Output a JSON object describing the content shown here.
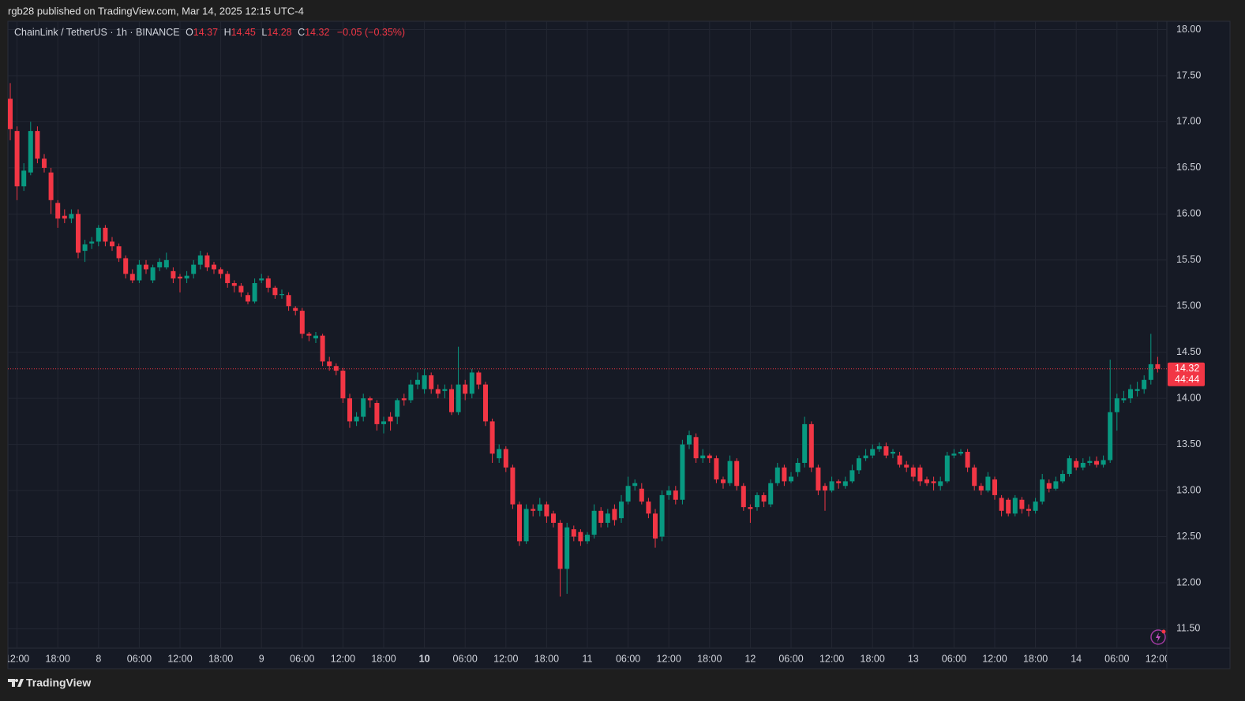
{
  "header": "rgb28 published on TradingView.com, Mar 14, 2025 12:15 UTC-4",
  "footer": "TradingView",
  "chart_data": {
    "type": "candlestick",
    "symbol": "ChainLink / TetherUS · 1h · BINANCE",
    "legend": {
      "o": "O",
      "h": "H",
      "l": "L",
      "c": "C",
      "change": "−0.05 (−0.35%)"
    },
    "countdown": "44:44",
    "up_color": "#089981",
    "down_color": "#f23645",
    "grid": true,
    "ylim": [
      11.29,
      18.09
    ],
    "yticks": [
      {
        "value": 11.5,
        "label": "11.50"
      },
      {
        "value": 12,
        "label": "12.00"
      },
      {
        "value": 12.5,
        "label": "12.50"
      },
      {
        "value": 13,
        "label": "13.00"
      },
      {
        "value": 13.5,
        "label": "13.50"
      },
      {
        "value": 14,
        "label": "14.00"
      },
      {
        "value": 14.5,
        "label": "14.50"
      },
      {
        "value": 15,
        "label": "15.00"
      },
      {
        "value": 15.5,
        "label": "15.50"
      },
      {
        "value": 16,
        "label": "16.00"
      },
      {
        "value": 16.5,
        "label": "16.50"
      },
      {
        "value": 17,
        "label": "17.00"
      },
      {
        "value": 17.5,
        "label": "17.50"
      },
      {
        "value": 18,
        "label": "18.00"
      }
    ],
    "xticks": [
      {
        "value": 1,
        "label": "12:00"
      },
      {
        "value": 7,
        "label": "18:00"
      },
      {
        "value": 13,
        "label": "8"
      },
      {
        "value": 19,
        "label": "06:00"
      },
      {
        "value": 25,
        "label": "12:00"
      },
      {
        "value": 31,
        "label": "18:00"
      },
      {
        "value": 37,
        "label": "9"
      },
      {
        "value": 43,
        "label": "06:00"
      },
      {
        "value": 49,
        "label": "12:00"
      },
      {
        "value": 55,
        "label": "18:00"
      },
      {
        "value": 61,
        "label": "10",
        "bold": true
      },
      {
        "value": 67,
        "label": "06:00"
      },
      {
        "value": 73,
        "label": "12:00"
      },
      {
        "value": 79,
        "label": "18:00"
      },
      {
        "value": 85,
        "label": "11"
      },
      {
        "value": 91,
        "label": "06:00"
      },
      {
        "value": 97,
        "label": "12:00"
      },
      {
        "value": 103,
        "label": "18:00"
      },
      {
        "value": 109,
        "label": "12"
      },
      {
        "value": 115,
        "label": "06:00"
      },
      {
        "value": 121,
        "label": "12:00"
      },
      {
        "value": 127,
        "label": "18:00"
      },
      {
        "value": 133,
        "label": "13"
      },
      {
        "value": 139,
        "label": "06:00"
      },
      {
        "value": 145,
        "label": "12:00"
      },
      {
        "value": 151,
        "label": "18:00"
      },
      {
        "value": 157,
        "label": "14"
      },
      {
        "value": 163,
        "label": "06:00"
      },
      {
        "value": 169,
        "label": "12:00"
      }
    ],
    "open": [
      17.25,
      16.9,
      16.3,
      16.45,
      16.9,
      16.6,
      16.45,
      16.12,
      15.98,
      15.95,
      16.0,
      15.6,
      15.68,
      15.7,
      15.85,
      15.7,
      15.65,
      15.52,
      15.35,
      15.28,
      15.45,
      15.28,
      15.42,
      15.42,
      15.38,
      15.32,
      15.3,
      15.35,
      15.45,
      15.55,
      15.45,
      15.4,
      15.35,
      15.25,
      15.22,
      15.12,
      15.05,
      15.28,
      15.3,
      15.2,
      15.12,
      15.12,
      14.98,
      14.95,
      14.7,
      14.65,
      14.68,
      14.4,
      14.35,
      14.3,
      14.0,
      13.75,
      13.8,
      14.0,
      13.95,
      13.72,
      13.8,
      13.8,
      14.0,
      13.98,
      14.15,
      14.1,
      14.25,
      14.1,
      14.08,
      14.1,
      13.85,
      14.15,
      14.05,
      14.28,
      14.15,
      13.75,
      13.35,
      13.45,
      13.25,
      12.85,
      12.45,
      12.8,
      12.78,
      12.85,
      12.75,
      12.65,
      12.15,
      12.58,
      12.55,
      12.45,
      12.52,
      12.78,
      12.65,
      12.8,
      12.7,
      12.88,
      13.05,
      13.02,
      12.88,
      12.75,
      12.5,
      12.95,
      13.0,
      12.9,
      13.5,
      13.58,
      13.35,
      13.38,
      13.35,
      13.12,
      13.08,
      13.32,
      13.05,
      12.82,
      12.82,
      12.95,
      12.85,
      13.08,
      13.25,
      13.1,
      13.2,
      13.3,
      13.72,
      13.25,
      13.05,
      13.0,
      13.1,
      13.05,
      13.1,
      13.22,
      13.35,
      13.38,
      13.45,
      13.48,
      13.4,
      13.38,
      13.28,
      13.25,
      13.25,
      13.12,
      13.1,
      13.05,
      13.1,
      13.38,
      13.4,
      13.42,
      13.25,
      13.05,
      13.0,
      13.12,
      12.92,
      12.9,
      12.75,
      12.9,
      12.8,
      12.78,
      12.88,
      13.08,
      13.02,
      13.1,
      13.18,
      13.32,
      13.25,
      13.3,
      13.32,
      13.28,
      13.33,
      13.85,
      13.98,
      14.0,
      14.08,
      14.1,
      14.2,
      14.37
    ],
    "high": [
      17.42,
      16.95,
      16.55,
      17.0,
      16.95,
      16.65,
      16.5,
      16.15,
      16.05,
      16.05,
      16.05,
      15.72,
      15.75,
      15.88,
      15.88,
      15.75,
      15.68,
      15.55,
      15.4,
      15.5,
      15.5,
      15.45,
      15.52,
      15.58,
      15.42,
      15.35,
      15.38,
      15.5,
      15.6,
      15.58,
      15.48,
      15.42,
      15.38,
      15.28,
      15.25,
      15.15,
      15.3,
      15.35,
      15.33,
      15.22,
      15.18,
      15.15,
      15.0,
      14.98,
      14.72,
      14.72,
      14.7,
      14.45,
      14.38,
      14.33,
      14.05,
      13.85,
      14.05,
      14.02,
      13.98,
      13.8,
      13.85,
      14.0,
      14.05,
      14.2,
      14.28,
      14.32,
      14.28,
      14.15,
      14.15,
      14.15,
      14.56,
      14.2,
      14.32,
      14.3,
      14.18,
      13.78,
      13.5,
      13.48,
      13.28,
      12.88,
      12.85,
      12.85,
      12.92,
      12.88,
      12.78,
      12.68,
      12.65,
      12.62,
      12.58,
      12.55,
      12.85,
      12.82,
      12.8,
      12.85,
      12.95,
      13.15,
      13.12,
      13.08,
      12.92,
      12.8,
      13.0,
      13.05,
      13.05,
      13.55,
      13.65,
      13.62,
      13.45,
      13.4,
      13.38,
      13.15,
      13.38,
      13.35,
      13.08,
      12.85,
      12.98,
      12.98,
      13.12,
      13.3,
      13.28,
      13.2,
      13.35,
      13.8,
      13.75,
      13.28,
      13.08,
      13.15,
      13.12,
      13.15,
      13.28,
      13.38,
      13.45,
      13.5,
      13.52,
      13.52,
      13.45,
      13.42,
      13.32,
      13.28,
      13.28,
      13.15,
      13.15,
      13.15,
      13.42,
      13.45,
      13.45,
      13.45,
      13.28,
      13.08,
      13.2,
      13.15,
      12.95,
      12.92,
      12.95,
      12.93,
      12.85,
      12.92,
      13.18,
      13.12,
      13.15,
      13.22,
      13.38,
      13.35,
      13.35,
      13.37,
      13.37,
      13.38,
      14.42,
      14.05,
      14.08,
      14.15,
      14.18,
      14.25,
      14.7,
      14.45
    ],
    "low": [
      16.8,
      16.15,
      16.25,
      16.42,
      16.55,
      16.45,
      16.0,
      15.85,
      15.9,
      15.9,
      15.52,
      15.48,
      15.62,
      15.65,
      15.65,
      15.6,
      15.48,
      15.3,
      15.25,
      15.25,
      15.35,
      15.25,
      15.38,
      15.4,
      15.25,
      15.15,
      15.25,
      15.3,
      15.4,
      15.38,
      15.35,
      15.3,
      15.2,
      15.15,
      15.1,
      15.02,
      15.03,
      15.25,
      15.15,
      15.08,
      15.08,
      14.95,
      14.9,
      14.65,
      14.62,
      14.6,
      14.35,
      14.3,
      14.25,
      13.95,
      13.68,
      13.7,
      13.75,
      13.9,
      13.65,
      13.62,
      13.65,
      13.72,
      13.92,
      13.95,
      14.1,
      14.05,
      14.05,
      14.0,
      14.0,
      13.82,
      13.82,
      13.98,
      14.0,
      14.1,
      13.7,
      13.3,
      13.3,
      13.2,
      12.8,
      12.4,
      12.42,
      12.72,
      12.72,
      12.65,
      12.6,
      11.85,
      11.88,
      12.45,
      12.4,
      12.42,
      12.48,
      12.6,
      12.6,
      12.62,
      12.65,
      12.85,
      13.0,
      12.85,
      12.7,
      12.38,
      12.45,
      12.9,
      12.85,
      12.85,
      13.45,
      13.3,
      13.3,
      13.3,
      13.08,
      13.02,
      13.05,
      13.0,
      12.78,
      12.65,
      12.78,
      12.82,
      12.82,
      13.05,
      13.05,
      13.08,
      13.15,
      13.25,
      13.2,
      12.95,
      12.78,
      12.98,
      13.02,
      13.02,
      13.08,
      13.18,
      13.32,
      13.35,
      13.42,
      13.35,
      13.35,
      13.25,
      13.2,
      13.1,
      13.05,
      13.05,
      13.0,
      13.0,
      13.08,
      13.35,
      13.38,
      13.2,
      13.0,
      12.95,
      12.98,
      12.9,
      12.72,
      12.72,
      12.72,
      12.75,
      12.72,
      12.75,
      12.85,
      12.98,
      13.0,
      13.08,
      13.15,
      13.22,
      13.22,
      13.27,
      13.25,
      13.25,
      13.3,
      13.65,
      13.95,
      13.95,
      14.02,
      14.05,
      14.15,
      14.28
    ],
    "close": [
      16.92,
      16.3,
      16.47,
      16.9,
      16.6,
      16.5,
      16.15,
      15.95,
      15.95,
      16.0,
      15.58,
      15.67,
      15.7,
      15.85,
      15.7,
      15.65,
      15.52,
      15.35,
      15.28,
      15.45,
      15.4,
      15.42,
      15.48,
      15.5,
      15.3,
      15.3,
      15.33,
      15.45,
      15.55,
      15.42,
      15.4,
      15.35,
      15.25,
      15.22,
      15.15,
      15.05,
      15.25,
      15.3,
      15.2,
      15.12,
      15.13,
      15.0,
      14.95,
      14.7,
      14.68,
      14.68,
      14.4,
      14.35,
      14.3,
      14.0,
      13.75,
      13.8,
      14.0,
      13.98,
      13.72,
      13.75,
      13.75,
      13.98,
      13.98,
      14.15,
      14.2,
      14.25,
      14.1,
      14.05,
      14.1,
      13.85,
      14.15,
      14.05,
      14.28,
      14.15,
      13.75,
      13.4,
      13.45,
      13.25,
      12.85,
      12.45,
      12.8,
      12.78,
      12.85,
      12.72,
      12.65,
      12.15,
      12.6,
      12.5,
      12.45,
      12.52,
      12.78,
      12.65,
      12.75,
      12.68,
      12.88,
      13.05,
      13.08,
      12.88,
      12.75,
      12.48,
      12.95,
      13.0,
      12.9,
      13.5,
      13.6,
      13.35,
      13.38,
      13.35,
      13.12,
      13.08,
      13.32,
      13.05,
      12.82,
      12.8,
      12.95,
      12.88,
      13.08,
      13.25,
      13.1,
      13.15,
      13.3,
      13.72,
      13.25,
      13.0,
      13.0,
      13.1,
      13.08,
      13.1,
      13.22,
      13.35,
      13.38,
      13.45,
      13.48,
      13.38,
      13.42,
      13.28,
      13.25,
      13.15,
      13.1,
      13.08,
      13.08,
      13.1,
      13.38,
      13.4,
      13.42,
      13.25,
      13.05,
      13.0,
      13.15,
      12.95,
      12.78,
      12.75,
      12.92,
      12.8,
      12.78,
      12.88,
      13.12,
      13.02,
      13.1,
      13.18,
      13.35,
      13.25,
      13.3,
      13.32,
      13.28,
      13.33,
      13.85,
      14.0,
      14.0,
      14.1,
      14.1,
      14.2,
      14.37,
      14.32
    ]
  }
}
